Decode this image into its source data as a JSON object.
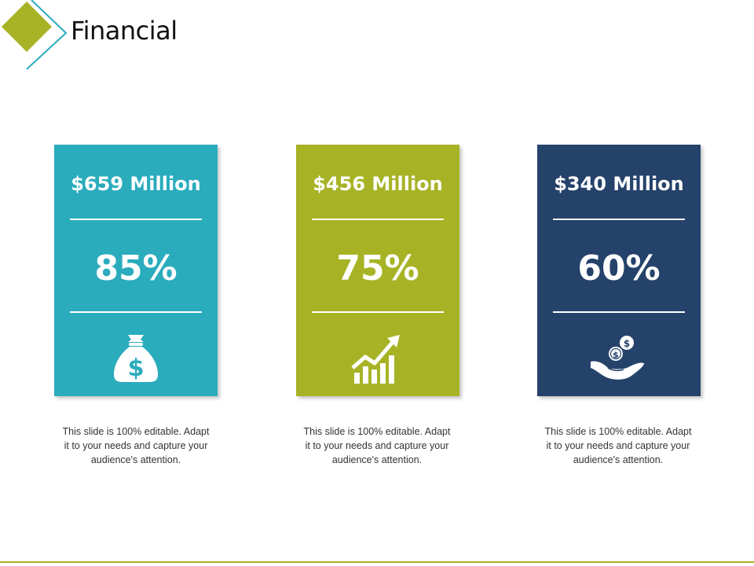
{
  "slide": {
    "title": "Financial"
  },
  "colors": {
    "teal": "#2aacbd",
    "olive": "#a7b325",
    "navy": "#25426a",
    "accent_line": "#a7b325",
    "logo_diamond": "#a7b325",
    "logo_outline": "#2aacbd"
  },
  "cards": [
    {
      "amount": "$659 Million",
      "percent": "85%",
      "icon": "money-bag-icon",
      "description": "This slide is 100% editable. Adapt it to your needs and capture your audience's attention."
    },
    {
      "amount": "$456 Million",
      "percent": "75%",
      "icon": "growth-chart-icon",
      "description": "This slide is 100% editable. Adapt it to your needs and capture your audience's attention."
    },
    {
      "amount": "$340 Million",
      "percent": "60%",
      "icon": "hand-coins-icon",
      "description": "This slide is 100% editable. Adapt it to your needs and capture your audience's attention."
    }
  ]
}
